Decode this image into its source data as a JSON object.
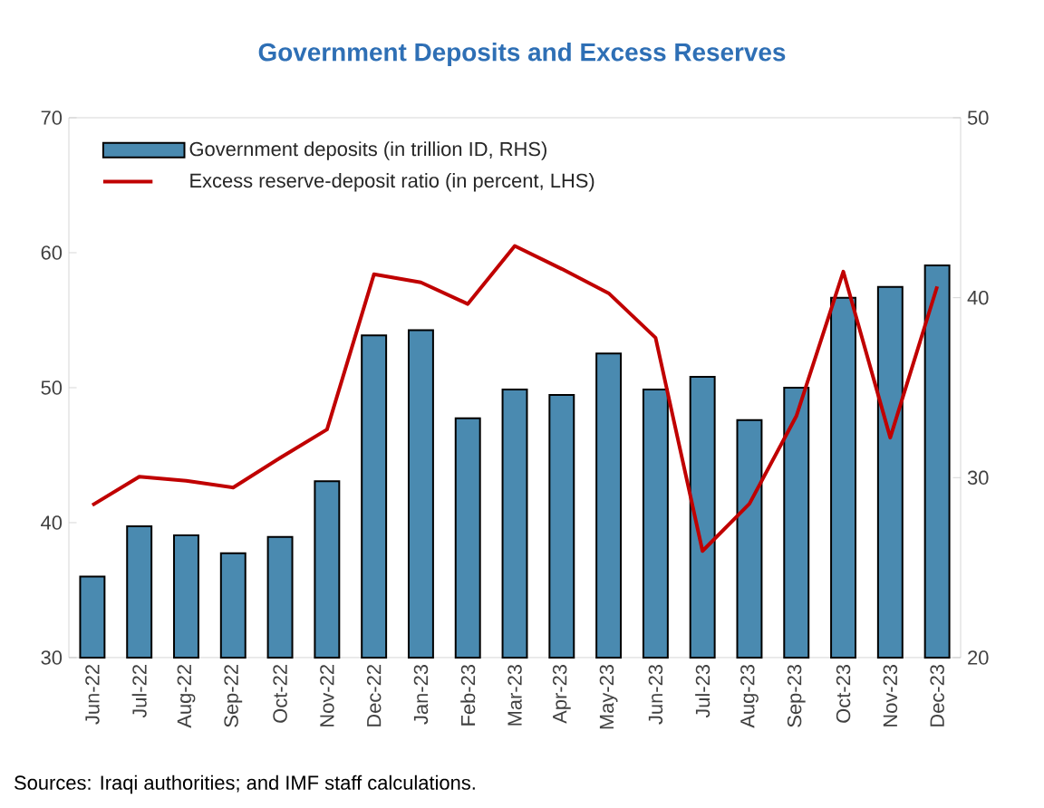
{
  "chart_data": {
    "type": "bar",
    "title": "Government Deposits and Excess Reserves",
    "categories": [
      "Jun-22",
      "Jul-22",
      "Aug-22",
      "Sep-22",
      "Oct-22",
      "Nov-22",
      "Dec-22",
      "Jan-23",
      "Feb-23",
      "Mar-23",
      "Apr-23",
      "May-23",
      "Jun-23",
      "Jul-23",
      "Aug-23",
      "Sep-23",
      "Oct-23",
      "Nov-23",
      "Dec-23"
    ],
    "series": [
      {
        "name": "Government deposits (in trillion ID, RHS)",
        "axis": "y2",
        "color": "#4a8ab0",
        "values": [
          24.5,
          27.3,
          26.8,
          25.8,
          26.7,
          29.8,
          37.9,
          38.2,
          33.3,
          34.9,
          34.6,
          36.9,
          34.9,
          35.6,
          33.2,
          35.0,
          40.0,
          40.6,
          41.8
        ]
      },
      {
        "name": "Excess reserve-deposit ratio (in percent, LHS)",
        "type": "line",
        "axis": "y",
        "color": "#c00000",
        "marker": "none",
        "line_style": "solid",
        "values": [
          41.3,
          43.4,
          43.1,
          42.6,
          44.8,
          46.9,
          58.4,
          57.8,
          56.2,
          60.5,
          58.8,
          57.0,
          53.7,
          37.9,
          41.4,
          47.9,
          58.6,
          46.3,
          57.5
        ]
      }
    ],
    "ylim": [
      30,
      70
    ],
    "yticks": [
      30,
      40,
      50,
      60,
      70
    ],
    "y2lim": [
      20,
      50
    ],
    "y2ticks": [
      20,
      30,
      40,
      50
    ],
    "legend": "top left",
    "annotations": [
      "Sources: Iraqi authorities; and IMF staff calculations."
    ]
  }
}
